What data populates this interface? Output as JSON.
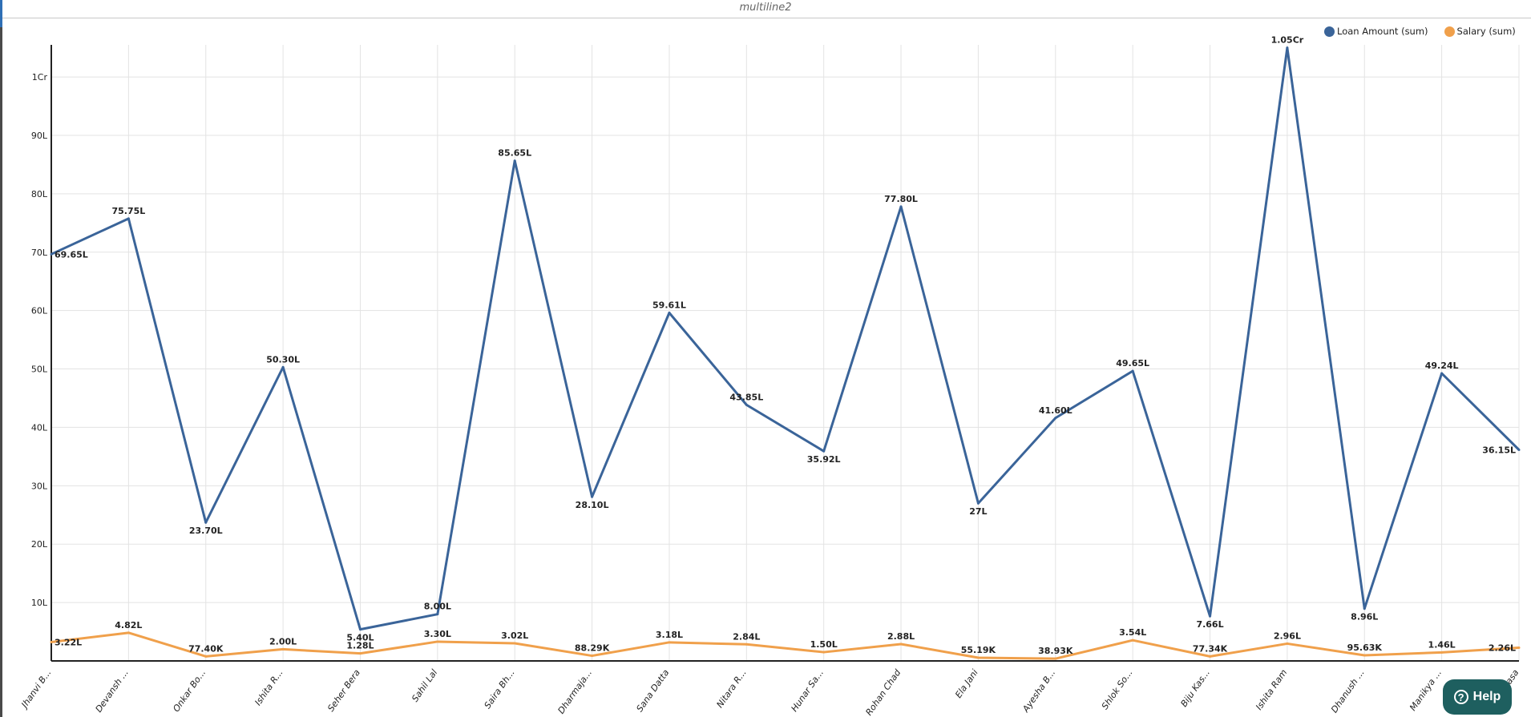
{
  "title": "multiline2",
  "help": {
    "label": "Help",
    "icon": "question-circle-icon"
  },
  "chart_data": {
    "type": "line",
    "title": "multiline2",
    "categories": [
      "Jhanvi B...",
      "Devansh ...",
      "Onkar Bo...",
      "Ishita R...",
      "Seher Bera",
      "Sahil Lal",
      "Saira Bh...",
      "Dharmaja...",
      "Sana Datta",
      "Nitara R...",
      "Hunar Sa...",
      "Rohan Chad",
      "Ela Jani",
      "Ayesha B...",
      "Shlok So...",
      "Biju Kas...",
      "Ishita Ram",
      "Dhanush ...",
      "Manikya ...",
      "asa"
    ],
    "ylim": [
      0,
      10550000
    ],
    "yticks": [
      {
        "value": 1000000,
        "label": "10L"
      },
      {
        "value": 2000000,
        "label": "20L"
      },
      {
        "value": 3000000,
        "label": "30L"
      },
      {
        "value": 4000000,
        "label": "40L"
      },
      {
        "value": 5000000,
        "label": "50L"
      },
      {
        "value": 6000000,
        "label": "60L"
      },
      {
        "value": 7000000,
        "label": "70L"
      },
      {
        "value": 8000000,
        "label": "80L"
      },
      {
        "value": 9000000,
        "label": "90L"
      },
      {
        "value": 10000000,
        "label": "1Cr"
      }
    ],
    "grid": true,
    "legend_position": "top-right",
    "series": [
      {
        "name": "Loan Amount (sum)",
        "color": "#3a6499",
        "values": [
          6965000,
          7575000,
          2370000,
          5030000,
          540000,
          800000,
          8565000,
          2810000,
          5961000,
          4385000,
          3592000,
          7780000,
          2700000,
          4160000,
          4965000,
          766000,
          10500000,
          896000,
          4924000,
          3615000
        ],
        "labels": [
          "69.65L",
          "75.75L",
          "23.70L",
          "50.30L",
          "5.40L",
          "8.00L",
          "85.65L",
          "28.10L",
          "59.61L",
          "43.85L",
          "35.92L",
          "77.80L",
          "27L",
          "41.60L",
          "49.65L",
          "7.66L",
          "1.05Cr",
          "8.96L",
          "49.24L",
          "36.15L"
        ]
      },
      {
        "name": "Salary (sum)",
        "color": "#f0a04b",
        "values": [
          322000,
          482000,
          77400,
          200000,
          128000,
          330000,
          302000,
          88290,
          318000,
          284000,
          150000,
          288000,
          55190,
          38930,
          354000,
          77340,
          296000,
          95630,
          146000,
          226000
        ],
        "labels": [
          "3.22L",
          "4.82L",
          "77.40K",
          "2.00L",
          "1.28L",
          "3.30L",
          "3.02L",
          "88.29K",
          "3.18L",
          "2.84L",
          "1.50L",
          "2.88L",
          "55.19K",
          "38.93K",
          "3.54L",
          "77.34K",
          "2.96L",
          "95.63K",
          "1.46L",
          "2.26L"
        ]
      }
    ]
  }
}
